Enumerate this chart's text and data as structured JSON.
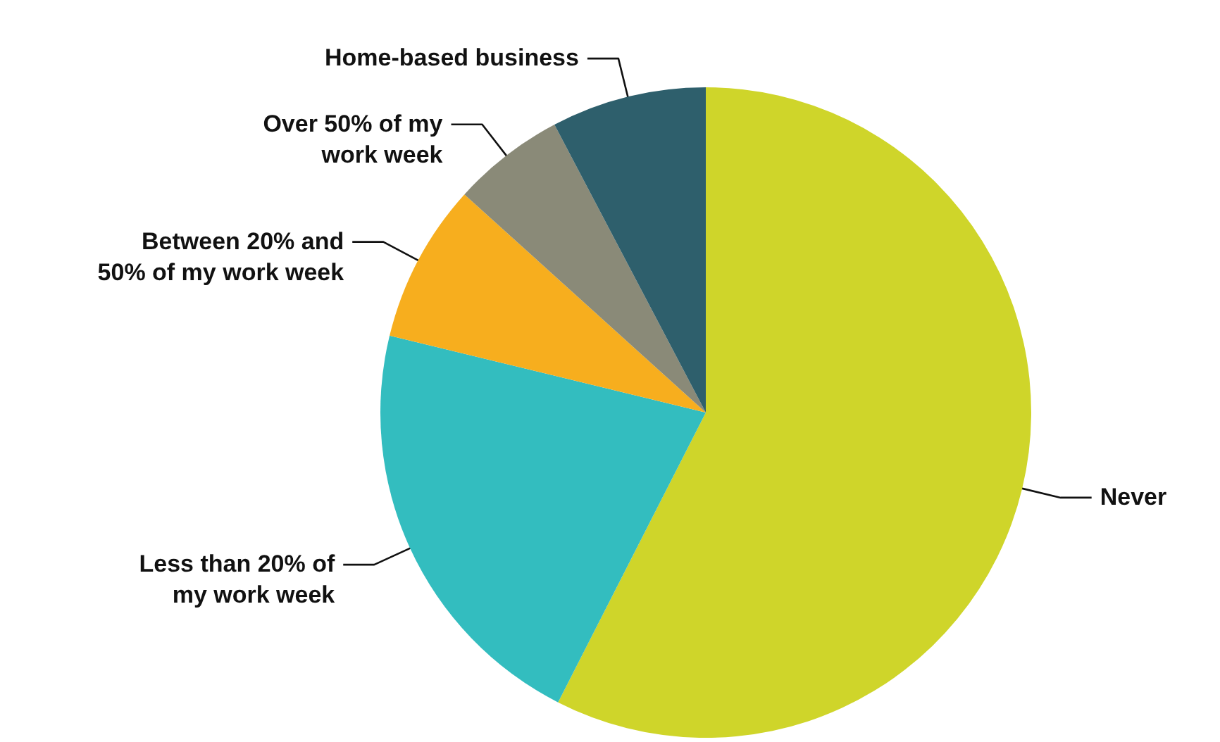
{
  "chart_data": {
    "type": "pie",
    "categories": [
      "Never",
      "Less than 20% of my work week",
      "Between 20% and 50% of my work week",
      "Over 50% of my work week",
      "Home-based business"
    ],
    "values": [
      57.5,
      21.3,
      7.9,
      5.6,
      7.7
    ],
    "colors": [
      "#cfd52a",
      "#33bdbf",
      "#f7ae1e",
      "#8a8a78",
      "#2e5f6c"
    ]
  }
}
